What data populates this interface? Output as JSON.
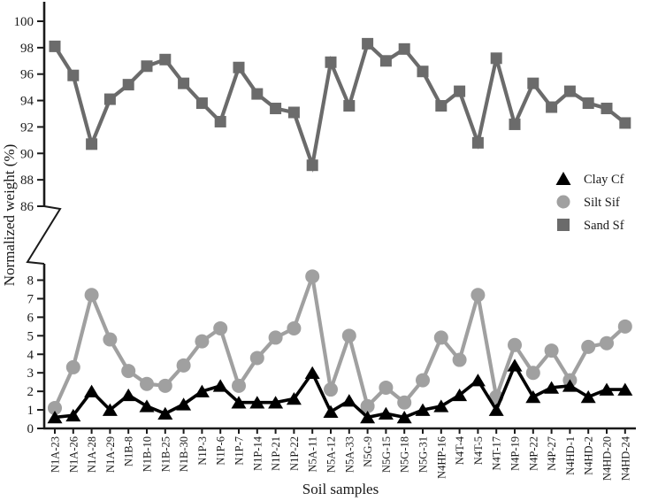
{
  "chart_data": {
    "type": "line",
    "xlabel": "Soil samples",
    "ylabel": "Normalized weight (%)",
    "legend_position": "right-middle",
    "broken_y_axis": {
      "top_panel": {
        "min": 86,
        "max": 100,
        "tick_step": 2,
        "tick_labels": [
          "86",
          "88",
          "90",
          "92",
          "94",
          "96",
          "98",
          "100"
        ]
      },
      "bottom_panel": {
        "min": 0,
        "max": 8,
        "tick_step": 1,
        "tick_labels": [
          "0",
          "1",
          "2",
          "3",
          "4",
          "5",
          "6",
          "7",
          "8"
        ]
      }
    },
    "categories": [
      "N1A-23",
      "N1A-26",
      "N1A-28",
      "N1A-29",
      "N1B-8",
      "N1B-10",
      "N1B-25",
      "N1B-30",
      "N1P-3",
      "N1P-6",
      "N1P-7",
      "N1P-14",
      "N1P-21",
      "N1P-22",
      "N5A-11",
      "N5A-12",
      "N5A-33",
      "N5G-9",
      "N5G-15",
      "N5G-18",
      "N5G-31",
      "N4HP-16",
      "N4T-4",
      "N4T-5",
      "N4T-17",
      "N4P-19",
      "N4P-22",
      "N4P-27",
      "N4HD-1",
      "N4HD-2",
      "N4HD-20",
      "N4HD-24"
    ],
    "series": [
      {
        "name": "Clay Cf",
        "marker": "triangle",
        "color": "#000000",
        "axis": "bottom",
        "values": [
          0.6,
          0.7,
          2.0,
          1.0,
          1.8,
          1.2,
          0.8,
          1.3,
          2.0,
          2.3,
          1.4,
          1.4,
          1.4,
          1.6,
          3.0,
          0.9,
          1.5,
          0.6,
          0.8,
          0.6,
          1.0,
          1.2,
          1.8,
          2.6,
          1.0,
          3.4,
          1.7,
          2.2,
          2.3,
          1.7,
          2.1,
          2.1
        ]
      },
      {
        "name": "Silt Sif",
        "marker": "circle",
        "color": "#a0a0a0",
        "axis": "bottom",
        "values": [
          1.1,
          3.3,
          7.2,
          4.8,
          3.1,
          2.4,
          2.3,
          3.4,
          4.7,
          5.4,
          2.3,
          3.8,
          4.9,
          5.4,
          8.2,
          2.1,
          5.0,
          1.2,
          2.2,
          1.4,
          2.6,
          4.9,
          3.7,
          7.2,
          1.7,
          4.5,
          3.0,
          4.2,
          2.6,
          4.4,
          4.6,
          5.5
        ]
      },
      {
        "name": "Sand Sf",
        "marker": "square",
        "color": "#6b6b6b",
        "axis": "top",
        "values": [
          98.1,
          95.9,
          90.7,
          94.1,
          95.2,
          96.6,
          97.1,
          95.3,
          93.8,
          92.4,
          96.5,
          94.5,
          93.4,
          93.1,
          89.1,
          96.9,
          93.6,
          98.3,
          97.0,
          97.9,
          96.2,
          93.6,
          94.7,
          90.8,
          97.2,
          92.2,
          95.3,
          93.5,
          94.7,
          93.8,
          93.4,
          92.3
        ]
      }
    ],
    "axis_color": "#1a1a1a"
  }
}
